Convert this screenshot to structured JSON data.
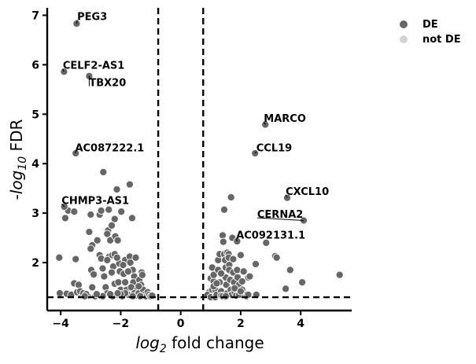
{
  "chart_data": {
    "type": "scatter",
    "xlabel": {
      "base": "log",
      "sub": "2",
      "rest": " fold change"
    },
    "ylabel": {
      "pre": "-log",
      "sub": "10",
      "rest": " FDR"
    },
    "xlim": [
      -4.45,
      5.7
    ],
    "ylim": [
      1.03,
      7.15
    ],
    "x_ticks": [
      -4,
      -2,
      0,
      2,
      4
    ],
    "x_tick_labels": [
      "−4",
      "−2",
      "0",
      "2",
      "4"
    ],
    "y_ticks": [
      2,
      3,
      4,
      5,
      6,
      7
    ],
    "y_tick_labels": [
      "2",
      "3",
      "4",
      "5",
      "6",
      "7"
    ],
    "thresholds": {
      "fc_neg": -0.75,
      "fc_pos": 0.75,
      "fdr": 1.3
    },
    "colors": {
      "de": "#666666",
      "not_de": "#d3d3d3",
      "edge": "#ffffff"
    },
    "legend": [
      {
        "label": "DE",
        "color": "#666666"
      },
      {
        "label": "not DE",
        "color": "#d3d3d3"
      }
    ],
    "labeled_genes": [
      {
        "name": "PEG3",
        "x": -3.47,
        "y": 6.83,
        "tx": -3.45,
        "ty": 6.97
      },
      {
        "name": "CELF2-AS1",
        "x": -3.89,
        "y": 5.86,
        "tx": -3.93,
        "ty": 5.98
      },
      {
        "name": "TBX20",
        "x": -3.05,
        "y": 5.77,
        "tx": -3.05,
        "ty": 5.63
      },
      {
        "name": "AC087222.1",
        "x": -3.5,
        "y": 4.21,
        "tx": -3.52,
        "ty": 4.31
      },
      {
        "name": "CHMP3-AS1",
        "x": -3.88,
        "y": 3.13,
        "tx": -3.97,
        "ty": 3.25
      },
      {
        "name": "MARCO",
        "x": 2.82,
        "y": 4.79,
        "tx": 2.77,
        "ty": 4.91
      },
      {
        "name": "CCL19",
        "x": 2.48,
        "y": 4.21,
        "tx": 2.52,
        "ty": 4.31
      },
      {
        "name": "CXCL10",
        "x": 3.55,
        "y": 3.31,
        "tx": 3.5,
        "ty": 3.43
      },
      {
        "name": "CERNA2",
        "x": 4.1,
        "y": 2.85,
        "tx": 2.55,
        "ty": 2.97
      },
      {
        "name": "AC092131.1",
        "x": 1.88,
        "y": 2.43,
        "tx": 1.85,
        "ty": 2.55
      }
    ],
    "points": [
      [
        -4.05,
        2.1
      ],
      [
        -4.03,
        1.38
      ],
      [
        -3.85,
        2.9
      ],
      [
        -3.75,
        3.05
      ],
      [
        -3.55,
        3.03
      ],
      [
        -3.5,
        2.07
      ],
      [
        -3.55,
        1.58
      ],
      [
        -3.4,
        1.55
      ],
      [
        -3.3,
        1.35
      ],
      [
        -3.8,
        1.37
      ],
      [
        -3.65,
        1.35
      ],
      [
        -3.45,
        1.4
      ],
      [
        -3.35,
        1.42
      ],
      [
        -3.25,
        1.38
      ],
      [
        -3.1,
        1.33
      ],
      [
        -3.0,
        2.97
      ],
      [
        -3.05,
        2.62
      ],
      [
        -2.95,
        2.35
      ],
      [
        -3.0,
        2.28
      ],
      [
        -2.98,
        1.85
      ],
      [
        -2.9,
        1.76
      ],
      [
        -2.95,
        1.5
      ],
      [
        -2.85,
        1.32
      ],
      [
        -2.7,
        2.97
      ],
      [
        -2.78,
        2.45
      ],
      [
        -2.65,
        3.05
      ],
      [
        -2.7,
        2.15
      ],
      [
        -2.65,
        2.08
      ],
      [
        -2.6,
        1.88
      ],
      [
        -2.55,
        1.72
      ],
      [
        -2.5,
        1.5
      ],
      [
        -2.45,
        1.38
      ],
      [
        -2.6,
        1.32
      ],
      [
        -2.58,
        3.83
      ],
      [
        -2.4,
        3.07
      ],
      [
        -2.42,
        2.65
      ],
      [
        -2.45,
        2.58
      ],
      [
        -2.35,
        2.45
      ],
      [
        -2.3,
        2.75
      ],
      [
        -2.38,
        2.12
      ],
      [
        -2.28,
        2.15
      ],
      [
        -2.2,
        2.17
      ],
      [
        -2.25,
        1.92
      ],
      [
        -2.3,
        1.8
      ],
      [
        -2.2,
        1.57
      ],
      [
        -2.15,
        1.35
      ],
      [
        -2.27,
        1.32
      ],
      [
        -2.2,
        2.88
      ],
      [
        -2.18,
        2.53
      ],
      [
        -2.1,
        2.45
      ],
      [
        -2.13,
        3.48
      ],
      [
        -2.05,
        1.98
      ],
      [
        -2.03,
        1.82
      ],
      [
        -2.08,
        1.6
      ],
      [
        -2.0,
        1.45
      ],
      [
        -1.95,
        1.32
      ],
      [
        -1.98,
        3.03
      ],
      [
        -1.85,
        2.05
      ],
      [
        -1.9,
        1.77
      ],
      [
        -1.85,
        1.6
      ],
      [
        -1.8,
        1.45
      ],
      [
        -1.75,
        1.35
      ],
      [
        -1.7,
        3.58
      ],
      [
        -1.62,
        2.9
      ],
      [
        -1.7,
        2.12
      ],
      [
        -1.68,
        2.0
      ],
      [
        -1.6,
        1.85
      ],
      [
        -1.55,
        1.72
      ],
      [
        -1.58,
        1.6
      ],
      [
        -1.65,
        1.5
      ],
      [
        -1.5,
        2.1
      ],
      [
        -1.45,
        1.45
      ],
      [
        -1.55,
        1.38
      ],
      [
        -1.48,
        1.33
      ],
      [
        -1.4,
        1.38
      ],
      [
        -1.38,
        1.65
      ],
      [
        -1.3,
        1.8
      ],
      [
        -1.28,
        1.75
      ],
      [
        -1.32,
        1.55
      ],
      [
        -1.25,
        1.45
      ],
      [
        -1.2,
        1.35
      ],
      [
        -1.15,
        1.32
      ],
      [
        -1.1,
        1.4
      ],
      [
        -1.05,
        1.35
      ],
      [
        -1.0,
        1.32
      ],
      [
        -0.95,
        1.33
      ],
      [
        -1.35,
        1.32
      ],
      [
        -1.6,
        1.32
      ],
      [
        -1.85,
        1.38
      ],
      [
        -2.0,
        1.36
      ],
      [
        -2.35,
        1.36
      ],
      [
        -2.8,
        1.36
      ],
      [
        -3.15,
        1.36
      ],
      [
        -3.2,
        1.32
      ],
      [
        -2.1,
        1.38
      ],
      [
        -1.4,
        1.52
      ],
      [
        -1.75,
        1.82
      ],
      [
        -1.92,
        1.95
      ],
      [
        -2.45,
        2.05
      ],
      [
        -2.12,
        2.1
      ],
      [
        0.95,
        1.4
      ],
      [
        0.9,
        1.35
      ],
      [
        1.0,
        1.3
      ],
      [
        1.05,
        1.45
      ],
      [
        1.0,
        1.68
      ],
      [
        1.05,
        1.9
      ],
      [
        1.1,
        1.62
      ],
      [
        1.1,
        1.75
      ],
      [
        1.15,
        1.45
      ],
      [
        1.15,
        1.3
      ],
      [
        1.2,
        1.35
      ],
      [
        1.25,
        1.85
      ],
      [
        1.25,
        2.05
      ],
      [
        1.3,
        2.17
      ],
      [
        1.3,
        1.6
      ],
      [
        1.35,
        1.42
      ],
      [
        1.35,
        1.33
      ],
      [
        1.4,
        2.55
      ],
      [
        1.42,
        2.42
      ],
      [
        1.45,
        3.07
      ],
      [
        1.45,
        2.17
      ],
      [
        1.48,
        2.05
      ],
      [
        1.5,
        1.9
      ],
      [
        1.5,
        1.7
      ],
      [
        1.52,
        1.55
      ],
      [
        1.55,
        1.38
      ],
      [
        1.55,
        2.2
      ],
      [
        1.6,
        2.17
      ],
      [
        1.6,
        2.1
      ],
      [
        1.62,
        1.95
      ],
      [
        1.62,
        1.85
      ],
      [
        1.65,
        1.65
      ],
      [
        1.67,
        1.45
      ],
      [
        1.7,
        1.35
      ],
      [
        1.68,
        3.32
      ],
      [
        1.72,
        2.5
      ],
      [
        1.75,
        2.07
      ],
      [
        1.75,
        1.8
      ],
      [
        1.78,
        1.6
      ],
      [
        1.8,
        1.4
      ],
      [
        1.85,
        1.33
      ],
      [
        1.88,
        1.85
      ],
      [
        1.9,
        1.7
      ],
      [
        1.95,
        1.55
      ],
      [
        1.95,
        1.35
      ],
      [
        2.0,
        2.15
      ],
      [
        2.05,
        1.62
      ],
      [
        2.05,
        1.45
      ],
      [
        2.1,
        1.82
      ],
      [
        2.15,
        1.35
      ],
      [
        2.2,
        1.32
      ],
      [
        2.25,
        1.7
      ],
      [
        2.3,
        1.72
      ],
      [
        2.5,
        1.97
      ],
      [
        2.52,
        1.35
      ],
      [
        2.85,
        2.4
      ],
      [
        3.15,
        2.13
      ],
      [
        3.2,
        2.1
      ],
      [
        3.5,
        1.47
      ],
      [
        3.65,
        1.85
      ],
      [
        4.05,
        1.6
      ],
      [
        5.3,
        1.75
      ],
      [
        1.1,
        1.52
      ],
      [
        1.2,
        1.58
      ],
      [
        1.35,
        1.78
      ],
      [
        1.4,
        1.32
      ],
      [
        1.5,
        1.32
      ],
      [
        1.8,
        1.48
      ],
      [
        2.0,
        1.42
      ],
      [
        2.25,
        1.35
      ]
    ]
  }
}
